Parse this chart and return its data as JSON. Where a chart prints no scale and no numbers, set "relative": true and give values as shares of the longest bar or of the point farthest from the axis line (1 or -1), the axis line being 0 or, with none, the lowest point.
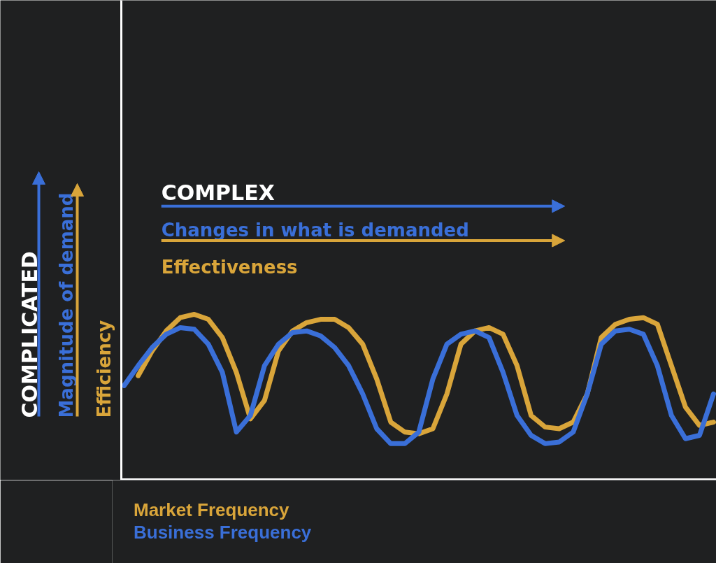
{
  "chart_data": {
    "type": "line",
    "relative": true,
    "categories": [
      null,
      null,
      null,
      null,
      null,
      null,
      null,
      null,
      null,
      null,
      null,
      null,
      null,
      null,
      null,
      null,
      null,
      null,
      null,
      null,
      null,
      null,
      null,
      null,
      null,
      null,
      null,
      null,
      null,
      null,
      null,
      null,
      null,
      null,
      null,
      null,
      null,
      null,
      null,
      null,
      null,
      null,
      null
    ],
    "series": [
      {
        "name": "Market Frequency",
        "color": "#d9a53a",
        "values": [
          null,
          0.63,
          0.78,
          0.9,
          0.98,
          1.0,
          0.97,
          0.86,
          0.65,
          0.37,
          0.48,
          0.78,
          0.9,
          0.95,
          0.97,
          0.97,
          0.92,
          0.82,
          0.61,
          0.35,
          0.29,
          0.28,
          0.31,
          0.52,
          0.82,
          0.9,
          0.92,
          0.88,
          0.69,
          0.39,
          0.32,
          0.31,
          0.35,
          0.52,
          0.86,
          0.94,
          0.97,
          0.98,
          0.94,
          0.69,
          0.44,
          0.33,
          0.35
        ]
      },
      {
        "name": "Business Frequency",
        "color": "#3a6fd8",
        "values": [
          0.57,
          0.69,
          0.8,
          0.88,
          0.92,
          0.91,
          0.82,
          0.65,
          0.29,
          0.39,
          0.69,
          0.82,
          0.89,
          0.9,
          0.87,
          0.8,
          0.69,
          0.52,
          0.31,
          0.22,
          0.22,
          0.29,
          0.61,
          0.82,
          0.88,
          0.9,
          0.86,
          0.65,
          0.39,
          0.27,
          0.22,
          0.23,
          0.29,
          0.52,
          0.82,
          0.9,
          0.91,
          0.88,
          0.69,
          0.39,
          0.25,
          0.27,
          0.52
        ]
      }
    ],
    "annotations": [
      "COMPLEX",
      "Changes in what is demanded",
      "Effectiveness",
      "COMPLICATED",
      "Magnitude of demand",
      "Efficiency"
    ],
    "legend": "bottom",
    "grid": false,
    "line_style": "solid"
  }
}
